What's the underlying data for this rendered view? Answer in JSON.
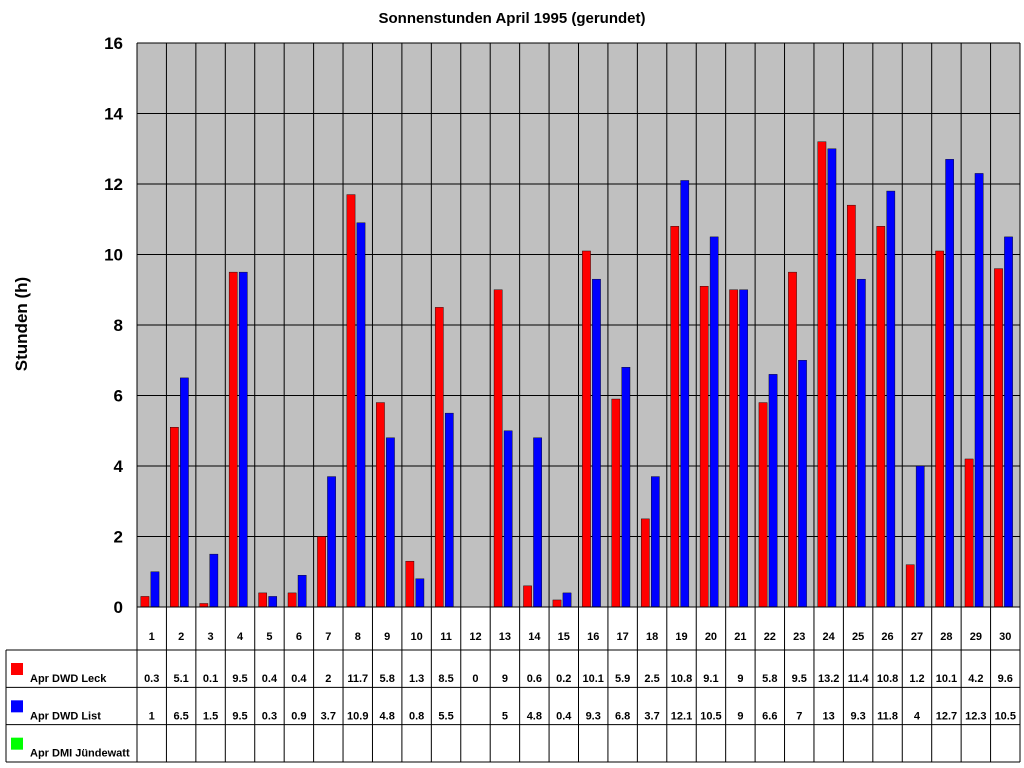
{
  "chart_data": {
    "type": "bar",
    "title": "Sonnenstunden April 1995 (gerundet)",
    "ylabel": "Stunden (h)",
    "xlabel": "",
    "ylim": [
      0,
      16
    ],
    "yticks": [
      "0",
      "2",
      "4",
      "6",
      "8",
      "10",
      "12",
      "14",
      "16"
    ],
    "grid": true,
    "legend": "bottom-left data table",
    "categories": [
      "1",
      "2",
      "3",
      "4",
      "5",
      "6",
      "7",
      "8",
      "9",
      "10",
      "11",
      "12",
      "13",
      "14",
      "15",
      "16",
      "17",
      "18",
      "19",
      "20",
      "21",
      "22",
      "23",
      "24",
      "25",
      "26",
      "27",
      "28",
      "29",
      "30"
    ],
    "series": [
      {
        "name": "Apr DWD Leck",
        "color": "#ff0000",
        "values": [
          0.3,
          5.1,
          0.1,
          9.5,
          0.4,
          0.4,
          2,
          11.7,
          5.8,
          1.3,
          8.5,
          0,
          9,
          0.6,
          0.2,
          10.1,
          5.9,
          2.5,
          10.8,
          9.1,
          9,
          5.8,
          9.5,
          13.2,
          11.4,
          10.8,
          1.2,
          10.1,
          4.2,
          9.6
        ]
      },
      {
        "name": "Apr DWD List",
        "color": "#0000ff",
        "values": [
          1,
          6.5,
          1.5,
          9.5,
          0.3,
          0.9,
          3.7,
          10.9,
          4.8,
          0.8,
          5.5,
          null,
          5,
          4.8,
          0.4,
          9.3,
          6.8,
          3.7,
          12.1,
          10.5,
          9,
          6.6,
          7,
          13,
          9.3,
          11.8,
          4,
          12.7,
          12.3,
          10.5
        ]
      },
      {
        "name": "Apr DMI Jündewatt",
        "color": "#00ff00",
        "values": [
          null,
          null,
          null,
          null,
          null,
          null,
          null,
          null,
          null,
          null,
          null,
          null,
          null,
          null,
          null,
          null,
          null,
          null,
          null,
          null,
          null,
          null,
          null,
          null,
          null,
          null,
          null,
          null,
          null,
          null
        ]
      }
    ],
    "plot_background": "#c0c0c0"
  }
}
